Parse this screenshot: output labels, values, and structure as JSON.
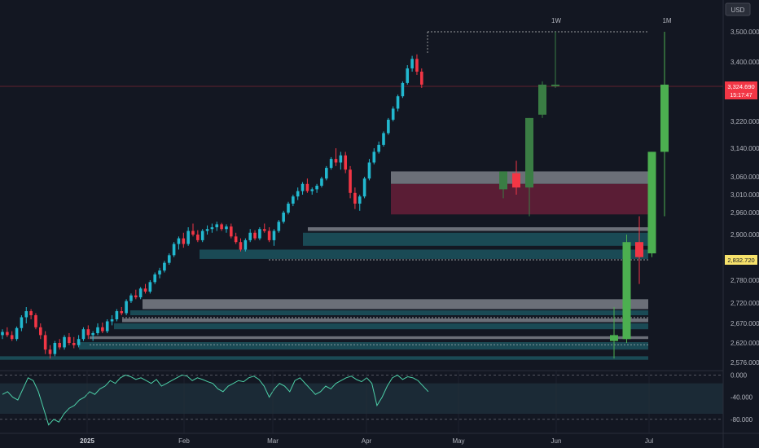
{
  "currency_label": "USD",
  "price_tag": {
    "value": "3,324.690",
    "countdown": "15:17:47",
    "color": "#f23645"
  },
  "level_tag": {
    "value": "2,832.720",
    "color": "#f7e26b"
  },
  "colors": {
    "background": "#131722",
    "up": "#22b8cf",
    "down": "#f23645",
    "htf_up_1w": "#3a7d44",
    "htf_up_1m": "#4caf50",
    "zone_gray": "#6b6f78",
    "zone_teal": "#1a4a55",
    "zone_maroon": "#5a1d35",
    "rsi_line": "#4dd0a8"
  },
  "chart_data": [
    {
      "type": "candlestick",
      "title": "",
      "y_ticks": [
        "3,500.000",
        "3,400.000",
        "3,324.690",
        "3,220.000",
        "3,140.000",
        "3,060.000",
        "3,010.000",
        "2,960.000",
        "2,900.000",
        "2,832.720",
        "2,780.000",
        "2,720.000",
        "2,670.000",
        "2,620.000",
        "2,576.000"
      ],
      "x_ticks": [
        "2025",
        "Feb",
        "Mar",
        "Apr",
        "May",
        "Jun",
        "Jul"
      ],
      "htf_labels": [
        "1W",
        "1M"
      ],
      "current_price": 3324.69,
      "daily_candles": [
        [
          2640,
          2655,
          2630,
          2648
        ],
        [
          2648,
          2660,
          2635,
          2640
        ],
        [
          2640,
          2650,
          2625,
          2630
        ],
        [
          2630,
          2662,
          2625,
          2658
        ],
        [
          2658,
          2690,
          2650,
          2685
        ],
        [
          2685,
          2710,
          2670,
          2700
        ],
        [
          2700,
          2705,
          2680,
          2690
        ],
        [
          2690,
          2695,
          2655,
          2660
        ],
        [
          2660,
          2670,
          2630,
          2640
        ],
        [
          2640,
          2650,
          2595,
          2605
        ],
        [
          2605,
          2615,
          2585,
          2595
        ],
        [
          2595,
          2625,
          2590,
          2620
        ],
        [
          2620,
          2630,
          2605,
          2610
        ],
        [
          2610,
          2640,
          2605,
          2635
        ],
        [
          2635,
          2645,
          2615,
          2620
        ],
        [
          2620,
          2635,
          2608,
          2615
        ],
        [
          2615,
          2640,
          2610,
          2630
        ],
        [
          2630,
          2660,
          2625,
          2655
        ],
        [
          2655,
          2665,
          2630,
          2640
        ],
        [
          2640,
          2650,
          2625,
          2645
        ],
        [
          2645,
          2670,
          2640,
          2660
        ],
        [
          2660,
          2672,
          2645,
          2650
        ],
        [
          2650,
          2680,
          2645,
          2675
        ],
        [
          2675,
          2690,
          2665,
          2680
        ],
        [
          2680,
          2705,
          2675,
          2700
        ],
        [
          2700,
          2710,
          2690,
          2695
        ],
        [
          2695,
          2730,
          2690,
          2725
        ],
        [
          2725,
          2745,
          2720,
          2740
        ],
        [
          2740,
          2755,
          2730,
          2735
        ],
        [
          2735,
          2762,
          2730,
          2758
        ],
        [
          2758,
          2770,
          2745,
          2750
        ],
        [
          2750,
          2780,
          2745,
          2775
        ],
        [
          2775,
          2800,
          2770,
          2795
        ],
        [
          2795,
          2812,
          2785,
          2805
        ],
        [
          2805,
          2830,
          2800,
          2825
        ],
        [
          2825,
          2850,
          2820,
          2845
        ],
        [
          2845,
          2880,
          2840,
          2875
        ],
        [
          2875,
          2895,
          2860,
          2890
        ],
        [
          2890,
          2905,
          2865,
          2875
        ],
        [
          2875,
          2920,
          2870,
          2910
        ],
        [
          2910,
          2930,
          2895,
          2900
        ],
        [
          2900,
          2912,
          2880,
          2885
        ],
        [
          2885,
          2915,
          2880,
          2910
        ],
        [
          2910,
          2925,
          2900,
          2915
        ],
        [
          2915,
          2930,
          2905,
          2920
        ],
        [
          2920,
          2935,
          2910,
          2928
        ],
        [
          2928,
          2932,
          2910,
          2915
        ],
        [
          2915,
          2928,
          2905,
          2922
        ],
        [
          2922,
          2930,
          2890,
          2895
        ],
        [
          2895,
          2905,
          2875,
          2880
        ],
        [
          2880,
          2890,
          2855,
          2860
        ],
        [
          2860,
          2890,
          2855,
          2885
        ],
        [
          2885,
          2915,
          2880,
          2905
        ],
        [
          2905,
          2912,
          2885,
          2890
        ],
        [
          2890,
          2920,
          2885,
          2915
        ],
        [
          2915,
          2930,
          2905,
          2910
        ],
        [
          2910,
          2920,
          2880,
          2885
        ],
        [
          2885,
          2915,
          2870,
          2910
        ],
        [
          2910,
          2940,
          2905,
          2935
        ],
        [
          2935,
          2965,
          2930,
          2960
        ],
        [
          2960,
          2990,
          2955,
          2985
        ],
        [
          2985,
          3010,
          2978,
          3005
        ],
        [
          3005,
          3030,
          2995,
          3020
        ],
        [
          3020,
          3045,
          3010,
          3040
        ],
        [
          3040,
          3055,
          3015,
          3020
        ],
        [
          3020,
          3030,
          3010,
          3025
        ],
        [
          3025,
          3040,
          3015,
          3035
        ],
        [
          3035,
          3060,
          3030,
          3055
        ],
        [
          3055,
          3090,
          3050,
          3085
        ],
        [
          3085,
          3115,
          3080,
          3110
        ],
        [
          3110,
          3140,
          3090,
          3100
        ],
        [
          3100,
          3130,
          3080,
          3120
        ],
        [
          3120,
          3130,
          3070,
          3080
        ],
        [
          3080,
          3090,
          3000,
          3015
        ],
        [
          3015,
          3030,
          2970,
          2985
        ],
        [
          2985,
          3010,
          2965,
          3005
        ],
        [
          3005,
          3060,
          3000,
          3055
        ],
        [
          3055,
          3110,
          3050,
          3100
        ],
        [
          3100,
          3140,
          3095,
          3130
        ],
        [
          3130,
          3160,
          3125,
          3150
        ],
        [
          3150,
          3190,
          3145,
          3185
        ],
        [
          3185,
          3230,
          3180,
          3225
        ],
        [
          3225,
          3265,
          3220,
          3258
        ],
        [
          3258,
          3300,
          3250,
          3295
        ],
        [
          3295,
          3340,
          3290,
          3335
        ],
        [
          3335,
          3390,
          3330,
          3380
        ],
        [
          3380,
          3420,
          3370,
          3410
        ],
        [
          3410,
          3425,
          3360,
          3370
        ],
        [
          3370,
          3380,
          3320,
          3330
        ]
      ],
      "weekly_candles": [
        [
          3025,
          3075,
          3000,
          3075
        ],
        [
          3070,
          3105,
          3010,
          3030
        ],
        [
          3030,
          3230,
          2950,
          3230
        ],
        [
          3240,
          3340,
          3230,
          3330
        ],
        [
          3325,
          3500,
          3320,
          3330
        ]
      ],
      "monthly_candles": [
        [
          2625,
          2710,
          2585,
          2640
        ],
        [
          2630,
          2900,
          2620,
          2880
        ],
        [
          2880,
          2950,
          2770,
          2840
        ],
        [
          2850,
          3130,
          2840,
          3130
        ],
        [
          3130,
          3500,
          2950,
          3330
        ]
      ],
      "zones": [
        {
          "color": "zone_gray",
          "y0": 3075,
          "y1": 3040
        },
        {
          "color": "zone_maroon",
          "y0": 3040,
          "y1": 2955
        },
        {
          "color": "zone_gray",
          "y0": 2920,
          "y1": 2910
        },
        {
          "color": "zone_teal",
          "y0": 2905,
          "y1": 2870
        },
        {
          "color": "zone_teal",
          "y0": 2860,
          "y1": 2835
        },
        {
          "color": "zone_gray",
          "y0": 2730,
          "y1": 2705
        },
        {
          "color": "zone_teal",
          "y0": 2702,
          "y1": 2690
        },
        {
          "color": "zone_gray",
          "y0": 2682,
          "y1": 2673
        },
        {
          "color": "zone_teal",
          "y0": 2670,
          "y1": 2655
        },
        {
          "color": "zone_gray",
          "y0": 2637,
          "y1": 2630
        },
        {
          "color": "zone_teal",
          "y0": 2622,
          "y1": 2605
        },
        {
          "color": "zone_teal",
          "y0": 2590,
          "y1": 2582
        }
      ],
      "dashed_levels": [
        3500,
        2832.72,
        2684,
        2616
      ],
      "rsi": {
        "ticks": [
          "0.000",
          "-40.000",
          "-80.000"
        ],
        "range": [
          -95,
          8
        ],
        "values": [
          -35,
          -30,
          -40,
          -45,
          -25,
          -5,
          -10,
          -30,
          -60,
          -90,
          -80,
          -85,
          -70,
          -60,
          -55,
          -45,
          -40,
          -30,
          -35,
          -25,
          -20,
          -10,
          -15,
          -5,
          0,
          -3,
          -8,
          -5,
          -10,
          -15,
          -8,
          -20,
          -15,
          -10,
          -5,
          0,
          -2,
          -10,
          -5,
          -8,
          -12,
          -15,
          -25,
          -30,
          -20,
          -15,
          -10,
          -12,
          -5,
          -2,
          -8,
          -20,
          -40,
          -25,
          -15,
          -20,
          -30,
          -10,
          -5,
          -15,
          -25,
          -35,
          -30,
          -20,
          -25,
          -15,
          -10,
          -5,
          -2,
          -8,
          -12,
          -5,
          -15,
          -55,
          -40,
          -20,
          -5,
          0,
          -8,
          -3,
          -5,
          -10,
          -20,
          -30
        ]
      }
    }
  ]
}
